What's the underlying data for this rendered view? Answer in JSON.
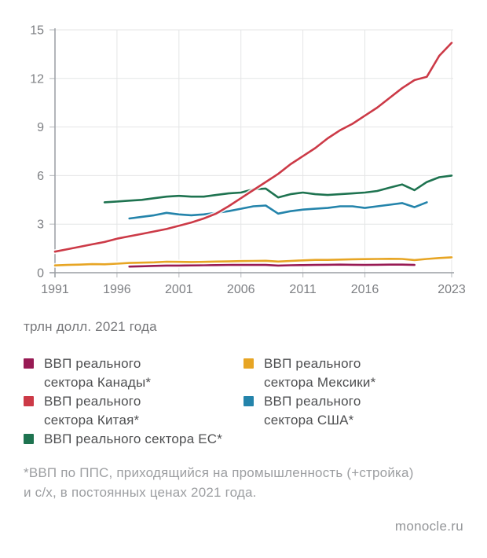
{
  "chart_data": {
    "type": "line",
    "title": "",
    "unit_label": "трлн долл. 2021 года",
    "xlabel": "",
    "ylabel": "",
    "xlim": [
      1991,
      2023
    ],
    "ylim": [
      0,
      15
    ],
    "x_ticks": [
      1991,
      1996,
      2001,
      2006,
      2011,
      2016,
      2023
    ],
    "y_ticks": [
      0,
      3,
      6,
      9,
      12,
      15
    ],
    "grid": true,
    "legend_position": "bottom",
    "draw_order": [
      0,
      3,
      2,
      4,
      1
    ],
    "series": [
      {
        "id": "canada",
        "name": "ВВП реального сектора Канады*",
        "color": "#981a54",
        "start_year": 1997,
        "values": [
          0.38,
          0.4,
          0.42,
          0.44,
          0.44,
          0.45,
          0.46,
          0.47,
          0.48,
          0.48,
          0.48,
          0.48,
          0.44,
          0.46,
          0.47,
          0.48,
          0.49,
          0.5,
          0.49,
          0.48,
          0.49,
          0.5,
          0.5,
          0.48
        ]
      },
      {
        "id": "china",
        "name": "ВВП реального сектора Китая*",
        "color": "#cc3a47",
        "start_year": 1991,
        "values": [
          1.3,
          1.45,
          1.6,
          1.75,
          1.9,
          2.1,
          2.25,
          2.4,
          2.55,
          2.7,
          2.9,
          3.1,
          3.35,
          3.65,
          4.1,
          4.6,
          5.1,
          5.6,
          6.1,
          6.7,
          7.2,
          7.7,
          8.3,
          8.8,
          9.2,
          9.7,
          10.2,
          10.8,
          11.4,
          11.9,
          12.1,
          13.4,
          14.2
        ]
      },
      {
        "id": "eu",
        "name": "ВВП реального сектора ЕС*",
        "color": "#1e7350",
        "start_year": 1995,
        "values": [
          4.35,
          4.4,
          4.45,
          4.5,
          4.6,
          4.7,
          4.75,
          4.7,
          4.7,
          4.8,
          4.9,
          4.95,
          5.15,
          5.2,
          4.65,
          4.85,
          4.95,
          4.85,
          4.8,
          4.85,
          4.9,
          4.95,
          5.05,
          5.25,
          5.45,
          5.1,
          5.6,
          5.9,
          6.0
        ]
      },
      {
        "id": "mexico",
        "name": "ВВП реального сектора Мексики*",
        "color": "#e7a524",
        "start_year": 1991,
        "values": [
          0.45,
          0.48,
          0.5,
          0.53,
          0.52,
          0.56,
          0.6,
          0.62,
          0.64,
          0.68,
          0.67,
          0.66,
          0.67,
          0.69,
          0.7,
          0.72,
          0.73,
          0.74,
          0.69,
          0.73,
          0.76,
          0.79,
          0.79,
          0.81,
          0.83,
          0.84,
          0.85,
          0.86,
          0.85,
          0.78,
          0.85,
          0.91,
          0.95
        ]
      },
      {
        "id": "usa",
        "name": "ВВП реального сектора США*",
        "color": "#2484ab",
        "start_year": 1997,
        "values": [
          3.35,
          3.45,
          3.55,
          3.7,
          3.6,
          3.55,
          3.6,
          3.7,
          3.8,
          3.95,
          4.1,
          4.15,
          3.65,
          3.8,
          3.9,
          3.95,
          4.0,
          4.1,
          4.1,
          4.0,
          4.1,
          4.2,
          4.3,
          4.05,
          4.35
        ]
      }
    ]
  },
  "unit_label": "трлн долл. 2021 года",
  "legend": {
    "items": [
      {
        "label": "ВВП реального\nсектора Канады*",
        "color": "#981a54"
      },
      {
        "label": "ВВП реального\nсектора Китая*",
        "color": "#cc3a47"
      },
      {
        "label": "ВВП реального сектора ЕС*",
        "color": "#1e7350"
      },
      {
        "label": "ВВП реального\nсектора Мексики*",
        "color": "#e7a524"
      },
      {
        "label": "ВВП реального\nсектора США*",
        "color": "#2484ab"
      }
    ]
  },
  "footnote": "*ВВП по ППС, приходящийся на промышленность (+стройка)\nи с/х, в постоянных ценах 2021 года.",
  "source": "monocle.ru",
  "colors": {
    "axis": "#9a9ea3",
    "grid": "#e4e5e6",
    "tick": "#c2c4c7",
    "tick_label": "#7d7f83",
    "background": "#ffffff"
  }
}
